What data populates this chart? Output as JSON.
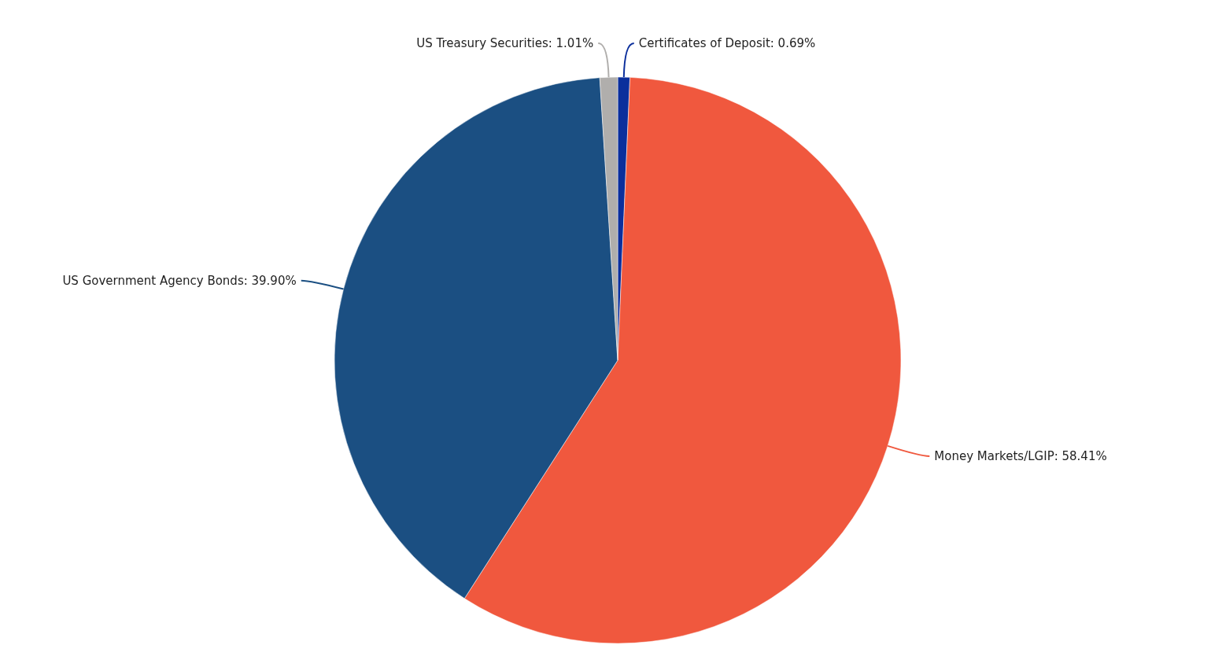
{
  "chart_data": {
    "type": "pie",
    "categories": [
      "Certificates of Deposit",
      "Money Markets/LGIP",
      "US Government Agency Bonds",
      "US Treasury Securities"
    ],
    "values": [
      0.69,
      58.41,
      39.9,
      1.01
    ],
    "value_labels": [
      "0.69%",
      "58.41%",
      "39.90%",
      "1.01%"
    ],
    "colors": [
      "#0b2f9c",
      "#f0583e",
      "#1b4f82",
      "#b0aeac"
    ]
  }
}
